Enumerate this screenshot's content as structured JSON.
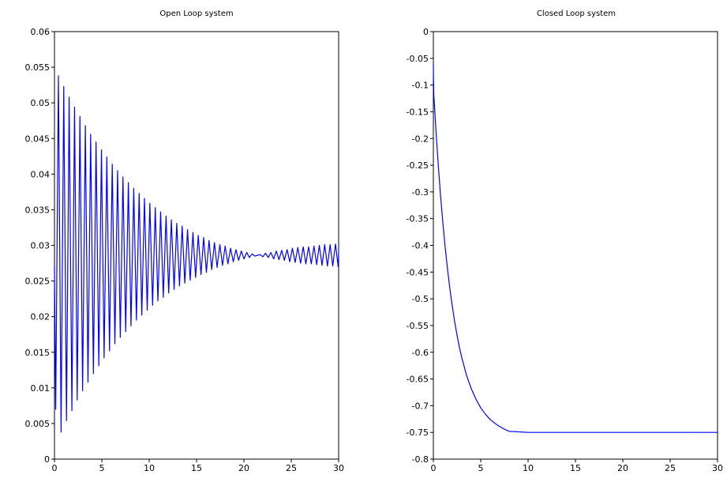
{
  "chart_data": [
    {
      "type": "line",
      "title": "Open Loop system",
      "xlabel": "",
      "ylabel": "",
      "xlim": [
        0,
        30
      ],
      "ylim": [
        0,
        0.06
      ],
      "xticks": [
        {
          "value": 0,
          "label": "0"
        },
        {
          "value": 5,
          "label": "5"
        },
        {
          "value": 10,
          "label": "10"
        },
        {
          "value": 15,
          "label": "15"
        },
        {
          "value": 20,
          "label": "20"
        },
        {
          "value": 25,
          "label": "25"
        },
        {
          "value": 30,
          "label": "30"
        }
      ],
      "yticks": [
        {
          "value": 0,
          "label": "0"
        },
        {
          "value": 0.005,
          "label": "0.005"
        },
        {
          "value": 0.01,
          "label": "0.01"
        },
        {
          "value": 0.015,
          "label": "0.015"
        },
        {
          "value": 0.02,
          "label": "0.02"
        },
        {
          "value": 0.025,
          "label": "0.025"
        },
        {
          "value": 0.03,
          "label": "0.03"
        },
        {
          "value": 0.035,
          "label": "0.035"
        },
        {
          "value": 0.04,
          "label": "0.04"
        },
        {
          "value": 0.045,
          "label": "0.045"
        },
        {
          "value": 0.05,
          "label": "0.05"
        },
        {
          "value": 0.055,
          "label": "0.055"
        },
        {
          "value": 0.06,
          "label": "0.06"
        }
      ],
      "grid": false,
      "color": "#0000ff",
      "series": [
        {
          "x": [
            0,
            0.13,
            0.42,
            0.7,
            0.98,
            1.27,
            1.55,
            1.84,
            2.12,
            2.4,
            2.69,
            2.97,
            3.26,
            3.54,
            3.82,
            4.11,
            4.39,
            4.68,
            4.96,
            5.24,
            5.53,
            5.81,
            6.1,
            6.38,
            6.66,
            6.95,
            7.23,
            7.52,
            7.8,
            8.08,
            8.37,
            8.65,
            8.94,
            9.22,
            9.5,
            9.79,
            10.07,
            10.36,
            10.64,
            10.92,
            11.21,
            11.49,
            11.78,
            12.06,
            12.34,
            12.63,
            12.91,
            13.2,
            13.48,
            13.76,
            14.05,
            14.33,
            14.62,
            14.9,
            15.18,
            15.47,
            15.75,
            16.04,
            16.32,
            16.6,
            16.89,
            17.17,
            17.46,
            17.74,
            18.02,
            18.31,
            18.59,
            18.88,
            19.16,
            19.44,
            19.73,
            20.01,
            20.3,
            20.58,
            20.86,
            21.15,
            21.43,
            21.72,
            22.0,
            22.28,
            22.57,
            22.85,
            23.14,
            23.42,
            23.7,
            23.99,
            24.27,
            24.56,
            24.84,
            25.12,
            25.41,
            25.69,
            25.98,
            26.26,
            26.54,
            26.83,
            27.11,
            27.4,
            27.68,
            27.96,
            28.25,
            28.53,
            28.82,
            29.1,
            29.38,
            29.67,
            29.95,
            30.0
          ],
          "y": [
            0.027,
            0.007,
            0.0538,
            0.0038,
            0.0523,
            0.0054,
            0.0508,
            0.0068,
            0.0494,
            0.0083,
            0.0481,
            0.0096,
            0.0468,
            0.0108,
            0.0456,
            0.012,
            0.0445,
            0.0131,
            0.0434,
            0.0142,
            0.0424,
            0.0152,
            0.0414,
            0.0162,
            0.0405,
            0.0171,
            0.0396,
            0.0179,
            0.0388,
            0.0187,
            0.038,
            0.0195,
            0.0373,
            0.0202,
            0.0366,
            0.0209,
            0.0359,
            0.0216,
            0.0353,
            0.0222,
            0.0347,
            0.0227,
            0.0341,
            0.0233,
            0.0336,
            0.0238,
            0.0331,
            0.0243,
            0.0327,
            0.0247,
            0.0322,
            0.0251,
            0.0318,
            0.0255,
            0.0314,
            0.0259,
            0.0311,
            0.0262,
            0.0307,
            0.0266,
            0.0304,
            0.0269,
            0.0301,
            0.0272,
            0.0299,
            0.0274,
            0.0296,
            0.0277,
            0.0294,
            0.0279,
            0.0292,
            0.0281,
            0.029,
            0.0283,
            0.0288,
            0.0285,
            0.0286,
            0.0287,
            0.0284,
            0.0289,
            0.0283,
            0.029,
            0.0281,
            0.0292,
            0.028,
            0.0293,
            0.0279,
            0.0294,
            0.0277,
            0.0296,
            0.0276,
            0.0297,
            0.0275,
            0.0298,
            0.0274,
            0.0298,
            0.0274,
            0.0299,
            0.0273,
            0.03,
            0.0272,
            0.0301,
            0.0271,
            0.0301,
            0.0271,
            0.0302,
            0.027,
            0.029
          ]
        }
      ]
    },
    {
      "type": "line",
      "title": "Closed Loop system",
      "xlabel": "",
      "ylabel": "",
      "xlim": [
        0,
        30
      ],
      "ylim": [
        -0.8,
        0
      ],
      "xticks": [
        {
          "value": 0,
          "label": "0"
        },
        {
          "value": 5,
          "label": "5"
        },
        {
          "value": 10,
          "label": "10"
        },
        {
          "value": 15,
          "label": "15"
        },
        {
          "value": 20,
          "label": "20"
        },
        {
          "value": 25,
          "label": "25"
        },
        {
          "value": 30,
          "label": "30"
        }
      ],
      "yticks": [
        {
          "value": 0,
          "label": "0"
        },
        {
          "value": -0.05,
          "label": "-0.05"
        },
        {
          "value": -0.1,
          "label": "-0.1"
        },
        {
          "value": -0.15,
          "label": "-0.15"
        },
        {
          "value": -0.2,
          "label": "-0.2"
        },
        {
          "value": -0.25,
          "label": "-0.25"
        },
        {
          "value": -0.3,
          "label": "-0.3"
        },
        {
          "value": -0.35,
          "label": "-0.35"
        },
        {
          "value": -0.4,
          "label": "-0.4"
        },
        {
          "value": -0.45,
          "label": "-0.45"
        },
        {
          "value": -0.5,
          "label": "-0.5"
        },
        {
          "value": -0.55,
          "label": "-0.55"
        },
        {
          "value": -0.6,
          "label": "-0.6"
        },
        {
          "value": -0.65,
          "label": "-0.65"
        },
        {
          "value": -0.7,
          "label": "-0.7"
        },
        {
          "value": -0.75,
          "label": "-0.75"
        },
        {
          "value": -0.8,
          "label": "-0.8"
        }
      ],
      "grid": false,
      "color": "#0000ff",
      "series": [
        {
          "x": [
            0,
            0.02,
            0.05,
            0.1,
            0.2,
            0.3,
            0.5,
            0.75,
            1,
            1.25,
            1.5,
            1.75,
            2,
            2.25,
            2.5,
            2.75,
            3,
            3.5,
            4,
            4.5,
            5,
            5.5,
            6,
            6.5,
            7,
            7.5,
            8,
            9,
            10,
            12,
            15,
            20,
            25,
            30
          ],
          "y": [
            -0.06,
            -0.09,
            -0.12,
            -0.133,
            -0.163,
            -0.192,
            -0.245,
            -0.305,
            -0.357,
            -0.404,
            -0.445,
            -0.482,
            -0.514,
            -0.543,
            -0.568,
            -0.591,
            -0.61,
            -0.643,
            -0.668,
            -0.688,
            -0.704,
            -0.716,
            -0.726,
            -0.733,
            -0.739,
            -0.744,
            -0.748,
            -0.749,
            -0.75,
            -0.75,
            -0.75,
            -0.75,
            -0.75,
            -0.75
          ]
        }
      ]
    }
  ]
}
